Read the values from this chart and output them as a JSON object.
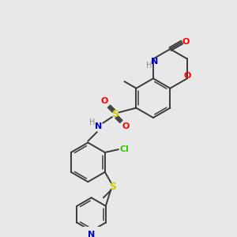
{
  "bg_color": "#e8e8e8",
  "bond_color": "#3a3a3a",
  "colors": {
    "O": "#ff0000",
    "N": "#0000cc",
    "S": "#cccc00",
    "Cl": "#33cc00",
    "H": "#888888",
    "C": "#3a3a3a"
  },
  "figsize": [
    3.0,
    3.0
  ],
  "dpi": 100
}
